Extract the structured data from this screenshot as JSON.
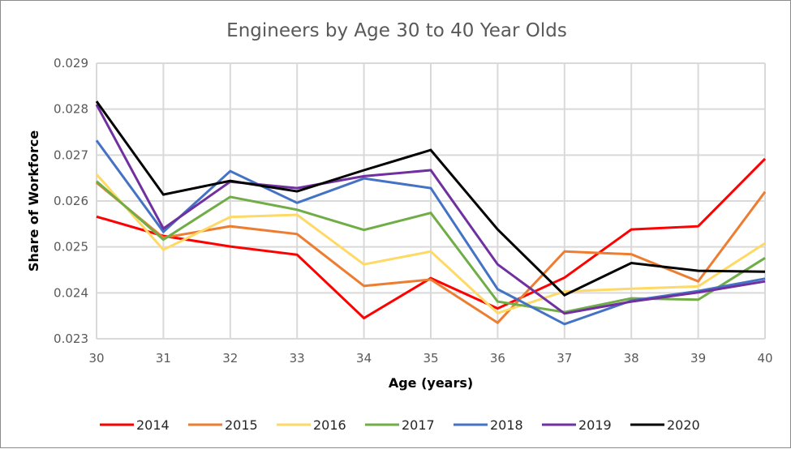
{
  "chart_data": {
    "type": "line",
    "title": "Engineers by Age 30 to 40 Year Olds",
    "xlabel": "Age (years)",
    "ylabel": "Share of Workforce",
    "x": [
      30,
      31,
      32,
      33,
      34,
      35,
      36,
      37,
      38,
      39,
      40
    ],
    "x_tick_labels": [
      "30",
      "31",
      "32",
      "33",
      "34",
      "35",
      "36",
      "37",
      "38",
      "39",
      "40"
    ],
    "ylim": [
      0.023,
      0.029
    ],
    "y_ticks": [
      0.023,
      0.024,
      0.025,
      0.026,
      0.027,
      0.028,
      0.029
    ],
    "y_tick_labels": [
      "0.023",
      "0.024",
      "0.025",
      "0.026",
      "0.027",
      "0.028",
      "0.029"
    ],
    "grid": true,
    "legend_position": "bottom",
    "series": [
      {
        "name": "2014",
        "color": "#ff0000",
        "values": [
          0.02566,
          0.02524,
          0.02501,
          0.02483,
          0.02345,
          0.02432,
          0.02366,
          0.02433,
          0.02538,
          0.02545,
          0.02692
        ]
      },
      {
        "name": "2015",
        "color": "#ed7d31",
        "values": [
          0.0264,
          0.0252,
          0.02545,
          0.02528,
          0.02415,
          0.02429,
          0.02335,
          0.0249,
          0.02484,
          0.02425,
          0.0262
        ]
      },
      {
        "name": "2016",
        "color": "#ffd966",
        "values": [
          0.02658,
          0.02494,
          0.02565,
          0.0257,
          0.02462,
          0.0249,
          0.02356,
          0.02403,
          0.02409,
          0.02414,
          0.02508
        ]
      },
      {
        "name": "2017",
        "color": "#70ad47",
        "values": [
          0.02643,
          0.02516,
          0.02609,
          0.02581,
          0.02537,
          0.02574,
          0.02381,
          0.02358,
          0.02388,
          0.02385,
          0.02476
        ]
      },
      {
        "name": "2018",
        "color": "#4472c4",
        "values": [
          0.02732,
          0.02533,
          0.02665,
          0.02596,
          0.02649,
          0.02628,
          0.02408,
          0.02332,
          0.02383,
          0.02404,
          0.02431
        ]
      },
      {
        "name": "2019",
        "color": "#7030a0",
        "values": [
          0.0281,
          0.0254,
          0.02642,
          0.02628,
          0.02654,
          0.02667,
          0.02462,
          0.02355,
          0.02381,
          0.02401,
          0.02425
        ]
      },
      {
        "name": "2020",
        "color": "#000000",
        "values": [
          0.02817,
          0.02614,
          0.02644,
          0.02621,
          0.02667,
          0.02711,
          0.02538,
          0.02395,
          0.02465,
          0.02448,
          0.02446
        ]
      }
    ]
  }
}
